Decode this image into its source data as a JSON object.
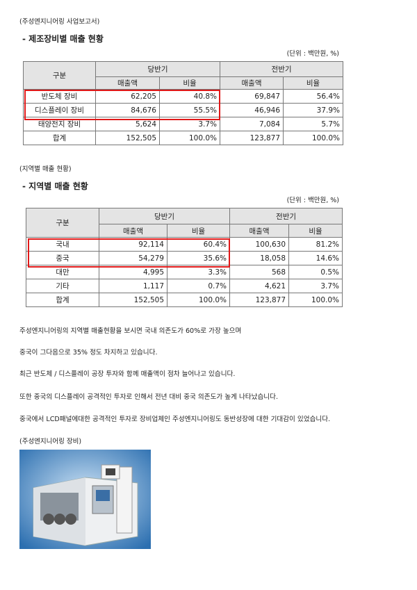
{
  "header": {
    "source": "(주성엔지니어링 사업보고서)"
  },
  "sections": [
    {
      "title": "- 제조장비별 매출 현황",
      "unit": "(단위 : 백만원, %)",
      "table": {
        "columns": [
          "구분",
          "당반기",
          "전반기"
        ],
        "subcolumns": [
          "매출액",
          "비율",
          "매출액",
          "비율"
        ],
        "rows": [
          [
            "반도체 장비",
            "62,205",
            "40.8%",
            "69,847",
            "56.4%"
          ],
          [
            "디스플레이 장비",
            "84,676",
            "55.5%",
            "46,946",
            "37.9%"
          ],
          [
            "태양전지 장비",
            "5,624",
            "3.7%",
            "7,084",
            "5.7%"
          ],
          [
            "합계",
            "152,505",
            "100.0%",
            "123,877",
            "100.0%"
          ]
        ]
      }
    },
    {
      "caption": "(지역별 매출 현황)",
      "title": "- 지역별 매출 현황",
      "unit": "(단위 : 백만원, %)",
      "table": {
        "columns": [
          "구분",
          "당반기",
          "전반기"
        ],
        "subcolumns": [
          "매출액",
          "비율",
          "매출액",
          "비율"
        ],
        "rows": [
          [
            "국내",
            "92,114",
            "60.4%",
            "100,630",
            "81.2%"
          ],
          [
            "중국",
            "54,279",
            "35.6%",
            "18,058",
            "14.6%"
          ],
          [
            "대만",
            "4,995",
            "3.3%",
            "568",
            "0.5%"
          ],
          [
            "기타",
            "1,117",
            "0.7%",
            "4,621",
            "3.7%"
          ],
          [
            "합계",
            "152,505",
            "100.0%",
            "123,877",
            "100.0%"
          ]
        ]
      }
    }
  ],
  "paragraphs": [
    "주성엔지니어링의 지역별 매출현황을 보시면 국내 의존도가 60%로 가장 높으며",
    "중국이 그다음으로 35% 정도 차지하고 있습니다.",
    "최근 반도체 / 디스플레이 공장 투자와 함께 매출액이 점차 늘어나고 있습니다.",
    "또한 중국의 디스플레이 공격적인 투자로 인해서 전년 대비 중국 의존도가 높게 나타났습니다.",
    "중국에서 LCD패널에대한 공격적인 투자로 장비업체인 주성엔지니어링도 동반성장에 대한 기대감이 있었습니다."
  ],
  "figure": {
    "caption": "(주성엔지니어링 장비)"
  }
}
